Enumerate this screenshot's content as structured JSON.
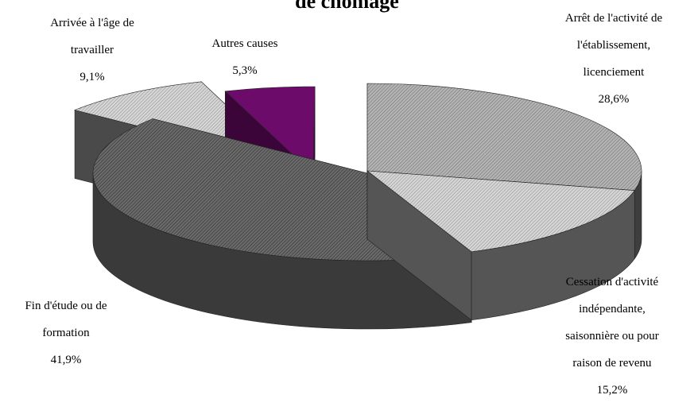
{
  "chart_data": {
    "type": "pie",
    "title": "de chômage",
    "legend": "none",
    "slices": [
      {
        "key": "arret",
        "lines": [
          "Arrêt de l'activité de",
          "l'établissement,",
          "licenciement"
        ],
        "value": "28,6%",
        "pct": 28.6,
        "color": "#a6a6a6"
      },
      {
        "key": "cessation",
        "lines": [
          "Cessation d'activité",
          "indépendante,",
          "saisonnière ou pour",
          "raison de revenu"
        ],
        "value": "15,2%",
        "pct": 15.2,
        "color": "#cfcfcf"
      },
      {
        "key": "fin",
        "lines": [
          "Fin d'étude ou de",
          "formation"
        ],
        "value": "41,9%",
        "pct": 41.9,
        "color": "#4a4a4a"
      },
      {
        "key": "arrivee",
        "lines": [
          "Arrivée à l'âge de",
          "travailler"
        ],
        "value": "9,1%",
        "pct": 9.1,
        "color": "#b8b8b8"
      },
      {
        "key": "autres",
        "lines": [
          "Autres causes"
        ],
        "value": "5,3%",
        "pct": 5.3,
        "color": "#6d0b6a"
      }
    ]
  }
}
